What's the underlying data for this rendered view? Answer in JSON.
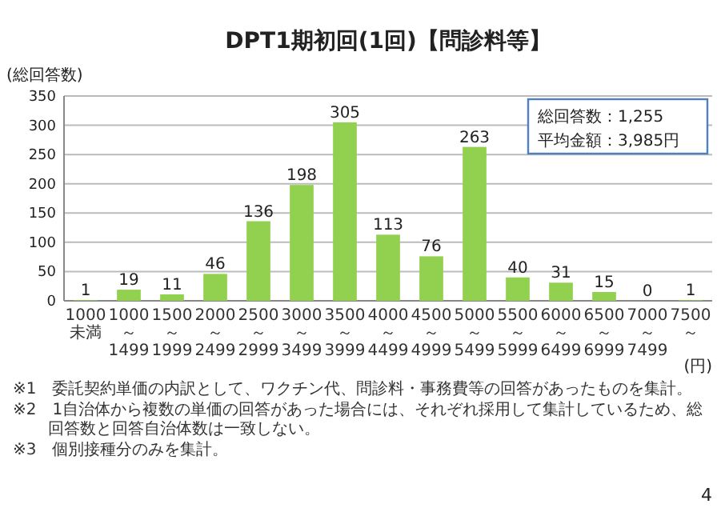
{
  "chart_data": {
    "type": "bar",
    "title": "DPT1期初回(1回)【問診料等】",
    "ylabel": "(総回答数)",
    "xlabel": "(円)",
    "categories": [
      "1000未満",
      "1000～1499",
      "1500～1999",
      "2000～2499",
      "2500～2999",
      "3000～3499",
      "3500～3999",
      "4000～4499",
      "4500～4999",
      "5000～5499",
      "5500～5999",
      "6000～6499",
      "6500～6999",
      "7000～7499",
      "7500～"
    ],
    "values": [
      1,
      19,
      11,
      46,
      136,
      198,
      305,
      113,
      76,
      263,
      40,
      31,
      15,
      0,
      1
    ],
    "color": "#92d050",
    "ylim": [
      0,
      350
    ],
    "yticks": [
      0,
      50,
      100,
      150,
      200,
      250,
      300,
      350
    ],
    "grid": "y",
    "data_labels": true,
    "annotations": [
      "総回答数：1,255",
      "平均金額：3,985円",
      "※1　委託契約単価の内訳として、ワクチン代、問診料・事務費等の回答があったものを集計。",
      "※2　1自治体から複数の単価の回答があった場合には、それぞれ採用して集計しているため、総回答数と回答自治体数は一致しない。",
      "※3　個別接種分のみを集計。",
      "4"
    ]
  }
}
